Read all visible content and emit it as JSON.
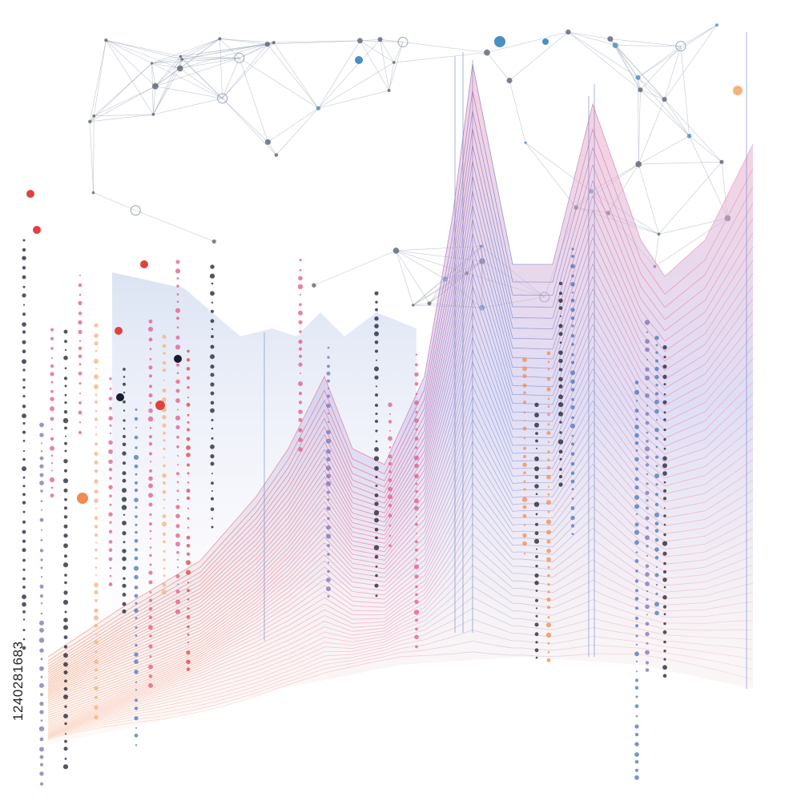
{
  "image_id": "1240281683"
}
